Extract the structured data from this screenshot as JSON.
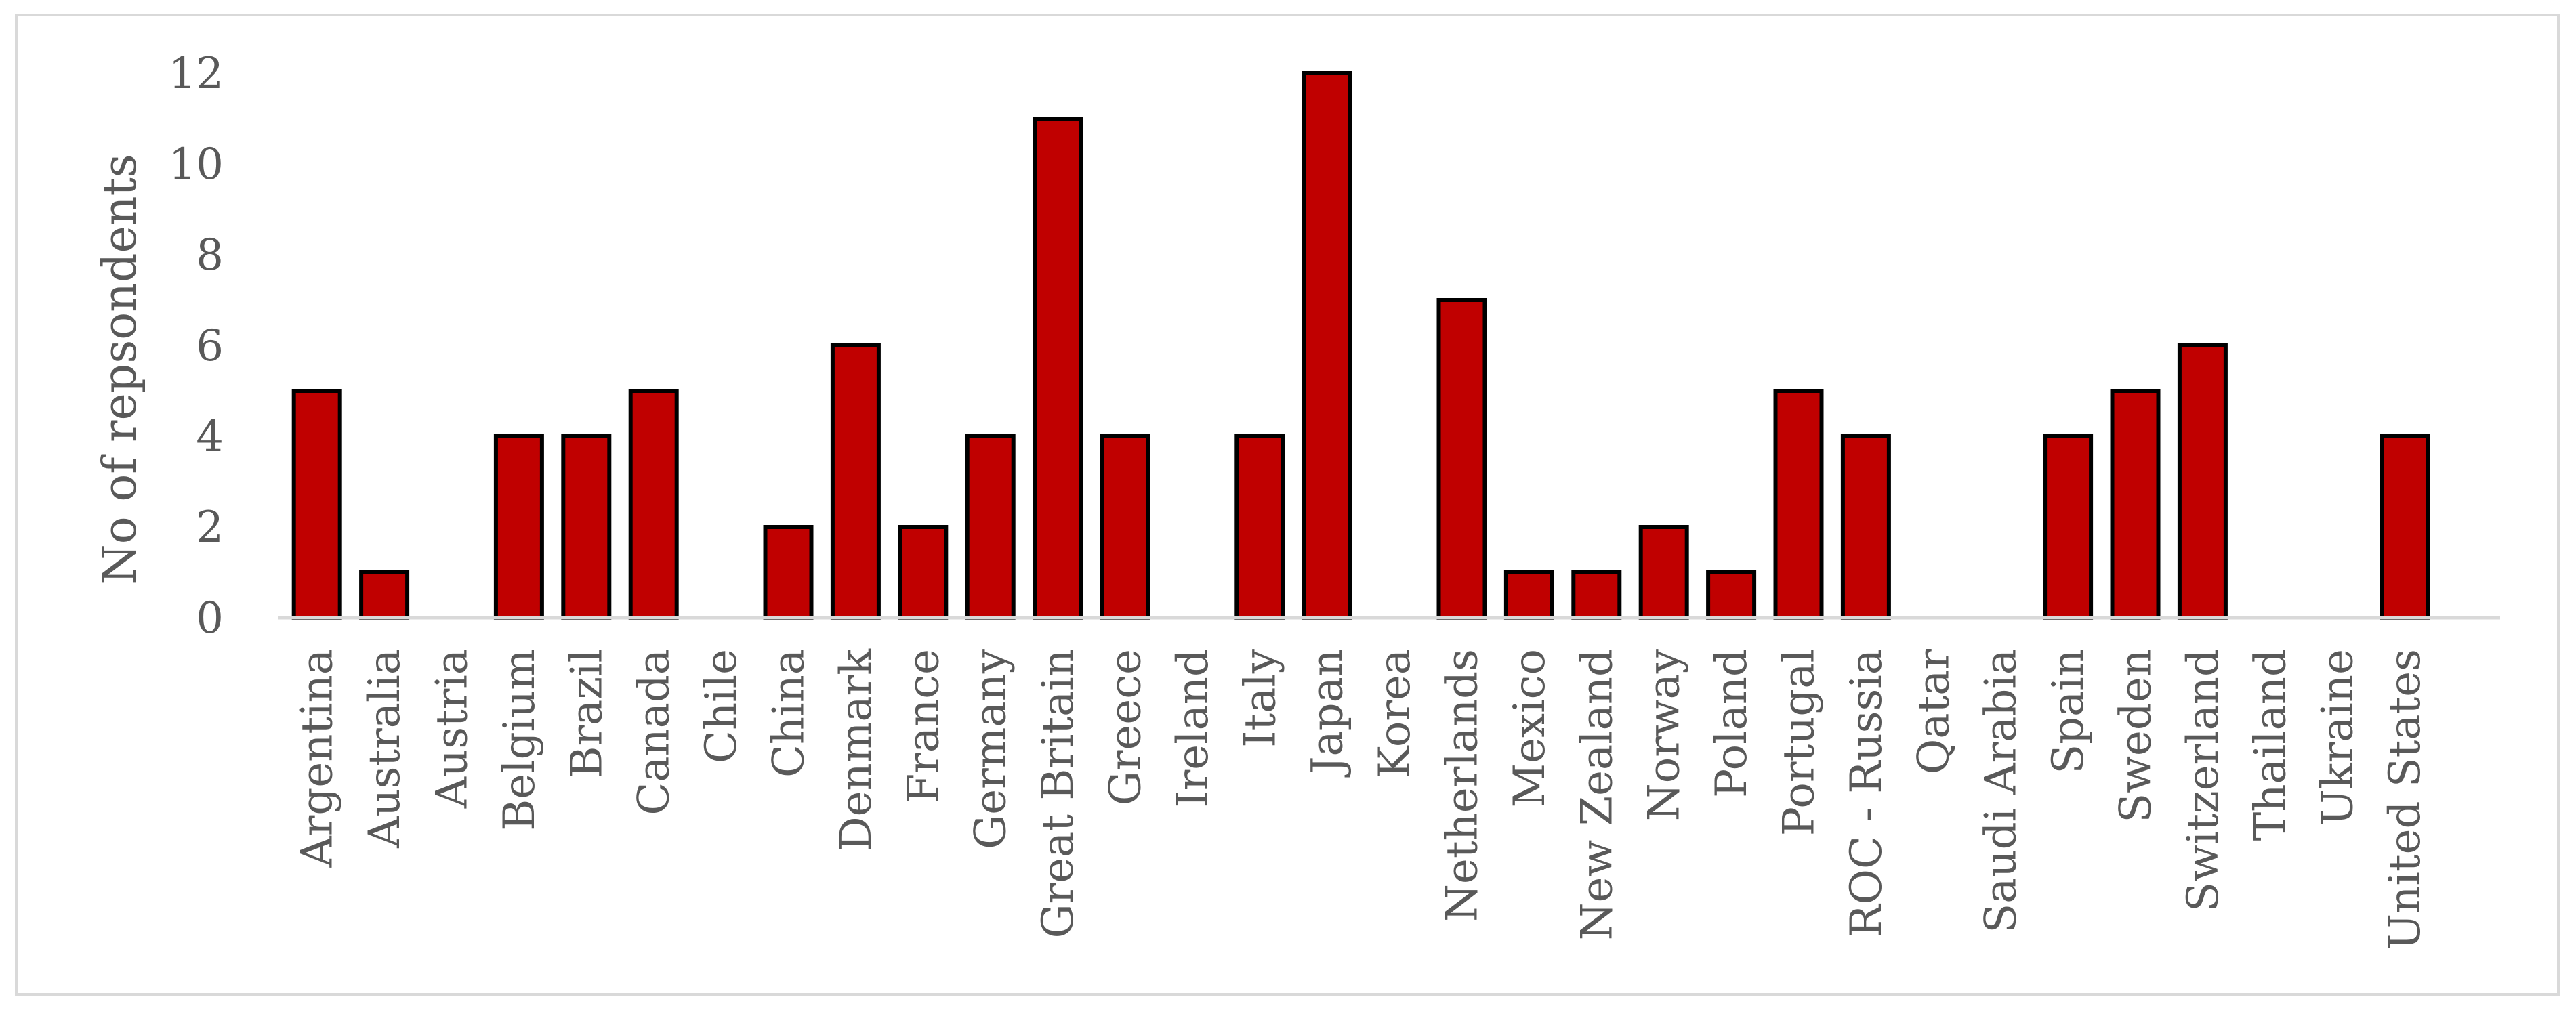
{
  "chart_data": {
    "type": "bar",
    "title": "",
    "xlabel": "",
    "ylabel": "No of repsondents",
    "ylim": [
      0,
      12
    ],
    "yticks": [
      0,
      2,
      4,
      6,
      8,
      10,
      12
    ],
    "grid": false,
    "legend": "none",
    "bar_color": "#c00000",
    "bar_outline_color": "#000000",
    "categories": [
      "Argentina",
      "Australia",
      "Austria",
      "Belgium",
      "Brazil",
      "Canada",
      "Chile",
      "China",
      "Denmark",
      "France",
      "Germany",
      "Great Britain",
      "Greece",
      "Ireland",
      "Italy",
      "Japan",
      "Korea",
      "Netherlands",
      "Mexico",
      "New Zealand",
      "Norway",
      "Poland",
      "Portugal",
      "ROC - Russia",
      "Qatar",
      "Saudi Arabia",
      "Spain",
      "Sweden",
      "Switzerland",
      "Thailand",
      "Ukraine",
      "United States"
    ],
    "values": [
      5,
      1,
      0,
      4,
      4,
      5,
      0,
      2,
      6,
      2,
      4,
      11,
      4,
      0,
      4,
      12,
      0,
      7,
      1,
      1,
      2,
      1,
      5,
      4,
      0,
      0,
      4,
      5,
      6,
      0,
      0,
      4
    ]
  }
}
